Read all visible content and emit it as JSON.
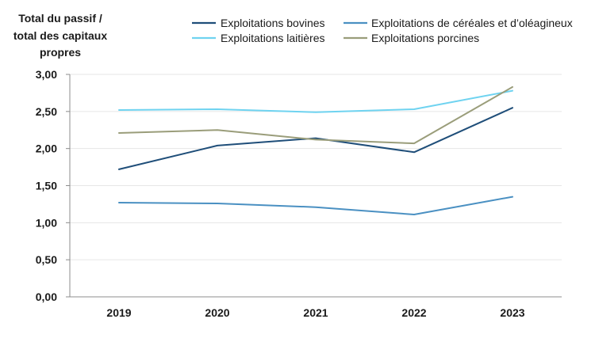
{
  "chart_data": {
    "type": "line",
    "title": "",
    "xlabel": "",
    "ylabel": [
      "Total du passif /",
      "total des capitaux",
      "propres"
    ],
    "categories": [
      "2019",
      "2020",
      "2021",
      "2022",
      "2023"
    ],
    "ylim": [
      0,
      3
    ],
    "yticks": [
      "0,00",
      "0,50",
      "1,00",
      "1,50",
      "2,00",
      "2,50",
      "3,00"
    ],
    "grid": true,
    "legend_position": "top",
    "series": [
      {
        "name": "Exploitations bovines",
        "color": "#1f4e79",
        "values": [
          1.72,
          2.04,
          2.14,
          1.95,
          2.55
        ]
      },
      {
        "name": "Exploitations de céréales et d’oléagineux",
        "color": "#4a90c2",
        "values": [
          1.27,
          1.26,
          1.21,
          1.11,
          1.35
        ]
      },
      {
        "name": "Exploitations laitières",
        "color": "#6fd3f0",
        "values": [
          2.52,
          2.53,
          2.49,
          2.53,
          2.78
        ]
      },
      {
        "name": "Exploitations porcines",
        "color": "#9a9d7a",
        "values": [
          2.21,
          2.25,
          2.12,
          2.07,
          2.83
        ]
      }
    ]
  }
}
